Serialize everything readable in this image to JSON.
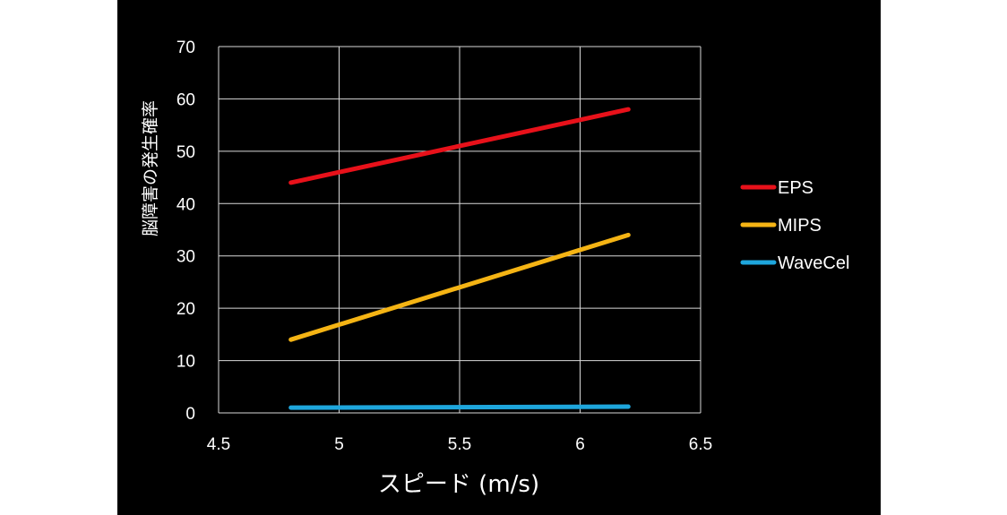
{
  "chart_data": {
    "type": "line",
    "title": "",
    "xlabel": "スピード (m/s)",
    "ylabel": "脳障害の発生確率",
    "xlim": [
      4.5,
      6.5
    ],
    "ylim": [
      0,
      70
    ],
    "xticks": [
      4.5,
      5,
      5.5,
      6,
      6.5
    ],
    "yticks": [
      0,
      10,
      20,
      30,
      40,
      50,
      60,
      70
    ],
    "grid": true,
    "legend_position": "right",
    "background": "#000000",
    "series": [
      {
        "name": "EPS",
        "color": "#e8111a",
        "x": [
          4.8,
          6.2
        ],
        "y": [
          44,
          58
        ]
      },
      {
        "name": "MIPS",
        "color": "#f5b414",
        "x": [
          4.8,
          6.2
        ],
        "y": [
          14,
          34
        ]
      },
      {
        "name": "WaveCel",
        "color": "#1ea6dc",
        "x": [
          4.8,
          6.2
        ],
        "y": [
          1,
          1.2
        ]
      }
    ]
  }
}
